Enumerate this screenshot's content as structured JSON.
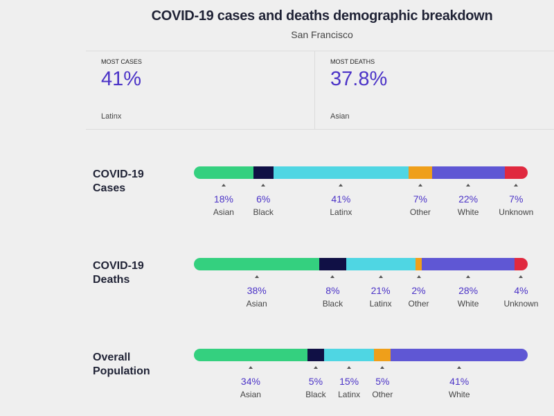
{
  "title": "COVID-19 cases and deaths demographic breakdown",
  "subtitle": "San Francisco",
  "stats": [
    {
      "label": "MOST CASES",
      "value": "41%",
      "group": "Latinx"
    },
    {
      "label": "MOST DEATHS",
      "value": "37.8%",
      "group": "Asian"
    }
  ],
  "colors": {
    "Asian": "#34d07f",
    "Black": "#101045",
    "Latinx": "#4fd6e3",
    "Other": "#ef9f1a",
    "White": "#5f57d4",
    "Unknown": "#e0293f"
  },
  "chart_data": [
    {
      "type": "bar",
      "orientation": "stacked-horizontal",
      "title": "COVID-19 Cases",
      "categories": [
        "Asian",
        "Black",
        "Latinx",
        "Other",
        "White",
        "Unknown"
      ],
      "values": [
        18,
        6,
        41,
        7,
        22,
        7
      ],
      "unit": "%"
    },
    {
      "type": "bar",
      "orientation": "stacked-horizontal",
      "title": "COVID-19 Deaths",
      "categories": [
        "Asian",
        "Black",
        "Latinx",
        "Other",
        "White",
        "Unknown"
      ],
      "values": [
        38,
        8,
        21,
        2,
        28,
        4
      ],
      "unit": "%"
    },
    {
      "type": "bar",
      "orientation": "stacked-horizontal",
      "title": "Overall Population",
      "categories": [
        "Asian",
        "Black",
        "Latinx",
        "Other",
        "White"
      ],
      "values": [
        34,
        5,
        15,
        5,
        41
      ],
      "unit": "%"
    }
  ],
  "row_labels": [
    [
      "COVID-19",
      "Cases"
    ],
    [
      "COVID-19",
      "Deaths"
    ],
    [
      "Overall",
      "Population"
    ]
  ]
}
